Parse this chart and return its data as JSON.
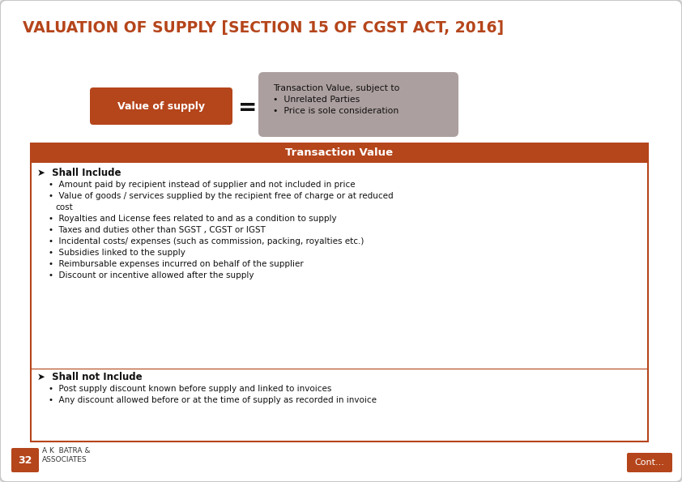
{
  "title": "VALUATION OF SUPPLY [SECTION 15 OF CGST ACT, 2016]",
  "title_color": "#B5451B",
  "slide_bg": "#ECECEC",
  "brown_color": "#B5451B",
  "gray_box_color": "#9E8E8E",
  "value_of_supply_text": "Value of supply",
  "transaction_value_header": "Transaction Value",
  "tv_box_text": "Transaction Value, subject to",
  "tv_bullets": [
    "•  Unrelated Parties",
    "•  Price is sole consideration"
  ],
  "shall_include_title": "➤  Shall Include",
  "shall_include_bullets": [
    "Amount paid by recipient instead of supplier and not included in price",
    "Value of goods / services supplied by the recipient free of charge or at reduced\n       cost",
    "Royalties and License fees related to and as a condition to supply",
    "Taxes and duties other than SGST , CGST or IGST",
    "Incidental costs/ expenses (such as commission, packing, royalties etc.)",
    "Subsidies linked to the supply",
    "Reimbursable expenses incurred on behalf of the supplier",
    "Discount or incentive allowed after the supply"
  ],
  "shall_not_include_title": "➤  Shall not Include",
  "shall_not_include_bullets": [
    "Post supply discount known before supply and linked to invoices",
    "Any discount allowed before or at the time of supply as recorded in invoice"
  ],
  "footer_number": "32",
  "footer_text": "A K  BATRA &\nASSOCIATES",
  "cont_text": "Cont..."
}
